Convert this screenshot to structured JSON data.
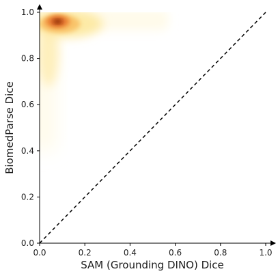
{
  "chart_data": {
    "type": "heatmap",
    "subtype": "2d-density",
    "title": "",
    "xlabel": "SAM (Grounding DINO) Dice",
    "ylabel": "BiomedParse Dice",
    "xlim": [
      0.0,
      1.0
    ],
    "ylim": [
      0.0,
      1.0
    ],
    "xticks": [
      "0.0",
      "0.2",
      "0.4",
      "0.6",
      "0.8",
      "1.0"
    ],
    "yticks": [
      "0.0",
      "0.2",
      "0.4",
      "0.6",
      "0.8",
      "1.0"
    ],
    "grid": false,
    "legend": "none",
    "reference_line": {
      "from": [
        0.0,
        0.0
      ],
      "to": [
        1.0,
        1.0
      ],
      "style": "dashed",
      "color": "#000000"
    },
    "colormap": [
      "#fffbea",
      "#fdeaa6",
      "#f9c46b",
      "#ef8a3a",
      "#c9551c",
      "#7a2a0b"
    ],
    "density_peak": {
      "x": 0.08,
      "y": 0.96
    },
    "density_extent": {
      "x": [
        0.0,
        0.57
      ],
      "y": [
        0.4,
        1.0
      ]
    }
  }
}
